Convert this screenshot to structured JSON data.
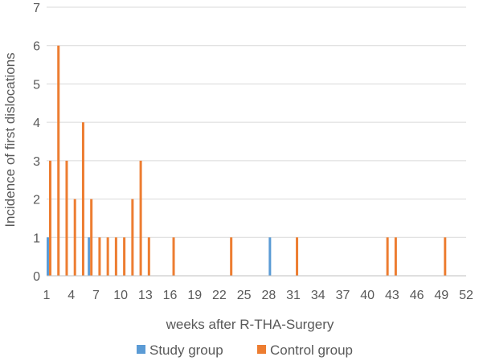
{
  "chart_data": {
    "type": "bar",
    "xlabel": "weeks after R-THA-Surgery",
    "ylabel": "Incidence of first dislocations",
    "ylim": [
      0,
      7
    ],
    "yticks": [
      "0",
      "1",
      "2",
      "3",
      "4",
      "5",
      "6",
      "7"
    ],
    "xlim": [
      1,
      52
    ],
    "xticks": [
      "1",
      "4",
      "7",
      "10",
      "13",
      "16",
      "19",
      "22",
      "25",
      "28",
      "31",
      "34",
      "37",
      "40",
      "43",
      "46",
      "49",
      "52"
    ],
    "grid": true,
    "legend_position": "bottom",
    "series": [
      {
        "name": "Study group",
        "color": "#5b9bd5",
        "points": [
          {
            "week": 1,
            "value": 1
          },
          {
            "week": 6,
            "value": 1
          },
          {
            "week": 28,
            "value": 1
          }
        ]
      },
      {
        "name": "Control group",
        "color": "#ed7d31",
        "points": [
          {
            "week": 1,
            "value": 3
          },
          {
            "week": 2,
            "value": 6
          },
          {
            "week": 3,
            "value": 3
          },
          {
            "week": 4,
            "value": 2
          },
          {
            "week": 5,
            "value": 4
          },
          {
            "week": 6,
            "value": 2
          },
          {
            "week": 7,
            "value": 1
          },
          {
            "week": 8,
            "value": 1
          },
          {
            "week": 9,
            "value": 1
          },
          {
            "week": 10,
            "value": 1
          },
          {
            "week": 11,
            "value": 2
          },
          {
            "week": 12,
            "value": 3
          },
          {
            "week": 13,
            "value": 1
          },
          {
            "week": 16,
            "value": 1
          },
          {
            "week": 23,
            "value": 1
          },
          {
            "week": 31,
            "value": 1
          },
          {
            "week": 42,
            "value": 1
          },
          {
            "week": 43,
            "value": 1
          },
          {
            "week": 49,
            "value": 1
          }
        ]
      }
    ]
  }
}
